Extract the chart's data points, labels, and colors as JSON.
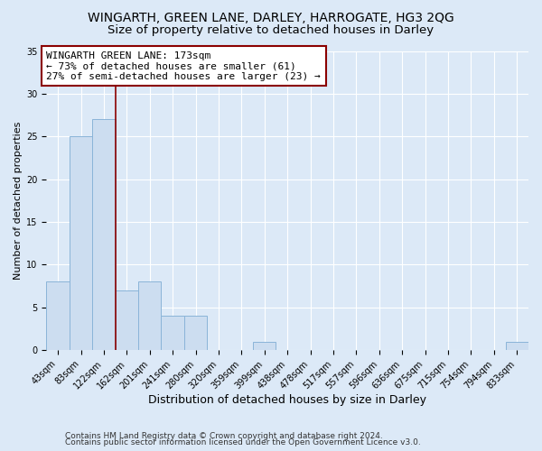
{
  "title": "WINGARTH, GREEN LANE, DARLEY, HARROGATE, HG3 2QG",
  "subtitle": "Size of property relative to detached houses in Darley",
  "xlabel": "Distribution of detached houses by size in Darley",
  "ylabel": "Number of detached properties",
  "bin_labels": [
    "43sqm",
    "83sqm",
    "122sqm",
    "162sqm",
    "201sqm",
    "241sqm",
    "280sqm",
    "320sqm",
    "359sqm",
    "399sqm",
    "438sqm",
    "478sqm",
    "517sqm",
    "557sqm",
    "596sqm",
    "636sqm",
    "675sqm",
    "715sqm",
    "754sqm",
    "794sqm",
    "833sqm"
  ],
  "bar_values": [
    8,
    25,
    27,
    7,
    8,
    4,
    4,
    0,
    0,
    1,
    0,
    0,
    0,
    0,
    0,
    0,
    0,
    0,
    0,
    0,
    1
  ],
  "bar_color": "#ccddf0",
  "bar_edgecolor": "#8ab4d8",
  "vline_color": "#8b0000",
  "vline_position": 2.5,
  "annotation_text": "WINGARTH GREEN LANE: 173sqm\n← 73% of detached houses are smaller (61)\n27% of semi-detached houses are larger (23) →",
  "annotation_box_facecolor": "#ffffff",
  "annotation_box_edgecolor": "#8b0000",
  "ylim": [
    0,
    35
  ],
  "yticks": [
    0,
    5,
    10,
    15,
    20,
    25,
    30,
    35
  ],
  "footer1": "Contains HM Land Registry data © Crown copyright and database right 2024.",
  "footer2": "Contains public sector information licensed under the Open Government Licence v3.0.",
  "background_color": "#dce9f7",
  "plot_bg_color": "#dce9f7",
  "title_fontsize": 10,
  "subtitle_fontsize": 9.5,
  "xlabel_fontsize": 9,
  "ylabel_fontsize": 8,
  "tick_fontsize": 7,
  "annotation_fontsize": 8,
  "footer_fontsize": 6.5
}
